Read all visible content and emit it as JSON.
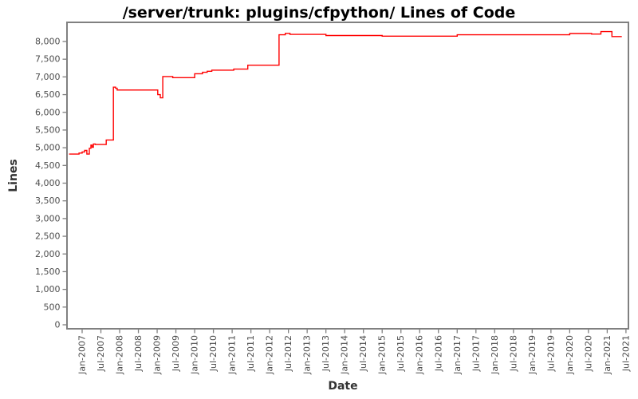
{
  "window": {
    "background": "#ffffff"
  },
  "chart_data": {
    "type": "line",
    "step": true,
    "title": "/server/trunk: plugins/cfpython/ Lines of Code",
    "xlabel": "Date",
    "ylabel": "Lines",
    "line_color": "#ff0000",
    "axis_tick_text_color": "#4d4d4d",
    "axis_title_color": "#333333",
    "plot_border_color": "#808080",
    "grid": false,
    "legend": "none",
    "ylim": [
      0,
      8540
    ],
    "y_ticks": [
      0,
      500,
      1000,
      1500,
      2000,
      2500,
      3000,
      3500,
      4000,
      4500,
      5000,
      5500,
      6000,
      6500,
      7000,
      7500,
      8000
    ],
    "x_ticks": [
      "Jan-2007",
      "Jul-2007",
      "Jan-2008",
      "Jul-2008",
      "Jan-2009",
      "Jul-2009",
      "Jan-2010",
      "Jul-2010",
      "Jan-2011",
      "Jul-2011",
      "Jan-2012",
      "Jul-2012",
      "Jan-2013",
      "Jul-2013",
      "Jan-2014",
      "Jul-2014",
      "Jan-2015",
      "Jul-2015",
      "Jan-2016",
      "Jul-2016",
      "Jan-2017",
      "Jul-2017",
      "Jan-2018",
      "Jul-2018",
      "Jan-2019",
      "Jul-2019",
      "Jan-2020",
      "Jul-2020",
      "Jan-2021",
      "Jul-2021"
    ],
    "x_tick_interval_months": 6,
    "x_range_months": [
      -4.9,
      174.8
    ],
    "series": [
      {
        "points": [
          {
            "m": -4.0,
            "date": "Sep-2006",
            "v": 4820
          },
          {
            "m": -1.0,
            "date": "Dec-2006",
            "v": 4850
          },
          {
            "m": 0.0,
            "date": "Jan-2007",
            "v": 4880
          },
          {
            "m": 0.8,
            "date": "Jan-2007",
            "v": 4925
          },
          {
            "m": 1.5,
            "date": "Feb-2007",
            "v": 4820
          },
          {
            "m": 2.3,
            "date": "Mar-2007",
            "v": 4985
          },
          {
            "m": 2.8,
            "date": "Mar-2007",
            "v": 5075
          },
          {
            "m": 3.2,
            "date": "Apr-2007",
            "v": 5015
          },
          {
            "m": 3.6,
            "date": "Apr-2007",
            "v": 5105
          },
          {
            "m": 4.2,
            "date": "May-2007",
            "v": 5090
          },
          {
            "m": 7.7,
            "date": "Aug-2007",
            "v": 5220
          },
          {
            "m": 10.0,
            "date": "Nov-2007",
            "v": 6710
          },
          {
            "m": 10.7,
            "date": "Nov-2007",
            "v": 6680
          },
          {
            "m": 11.2,
            "date": "Dec-2007",
            "v": 6630
          },
          {
            "m": 24.2,
            "date": "Jan-2009",
            "v": 6500
          },
          {
            "m": 25.0,
            "date": "Feb-2009",
            "v": 6410
          },
          {
            "m": 25.8,
            "date": "Feb-2009",
            "v": 7010
          },
          {
            "m": 29.0,
            "date": "Jun-2009",
            "v": 6980
          },
          {
            "m": 36.0,
            "date": "Jan-2010",
            "v": 7090
          },
          {
            "m": 38.5,
            "date": "Mar-2010",
            "v": 7130
          },
          {
            "m": 40.0,
            "date": "May-2010",
            "v": 7160
          },
          {
            "m": 41.5,
            "date": "Jun-2010",
            "v": 7190
          },
          {
            "m": 48.5,
            "date": "Jan-2011",
            "v": 7220
          },
          {
            "m": 53.0,
            "date": "Jun-2011",
            "v": 7330
          },
          {
            "m": 63.0,
            "date": "Apr-2012",
            "v": 8190
          },
          {
            "m": 65.0,
            "date": "Jun-2012",
            "v": 8230
          },
          {
            "m": 66.5,
            "date": "Jul-2012",
            "v": 8200
          },
          {
            "m": 78.0,
            "date": "Jul-2013",
            "v": 8170
          },
          {
            "m": 96.0,
            "date": "Jan-2015",
            "v": 8150
          },
          {
            "m": 120.0,
            "date": "Jan-2017",
            "v": 8190
          },
          {
            "m": 156.0,
            "date": "Jan-2020",
            "v": 8225
          },
          {
            "m": 163.0,
            "date": "Aug-2020",
            "v": 8210
          },
          {
            "m": 166.0,
            "date": "Nov-2020",
            "v": 8280
          },
          {
            "m": 169.5,
            "date": "Feb-2021",
            "v": 8140
          },
          {
            "m": 172.5,
            "date": "May-2021",
            "v": 8140
          }
        ]
      }
    ]
  }
}
